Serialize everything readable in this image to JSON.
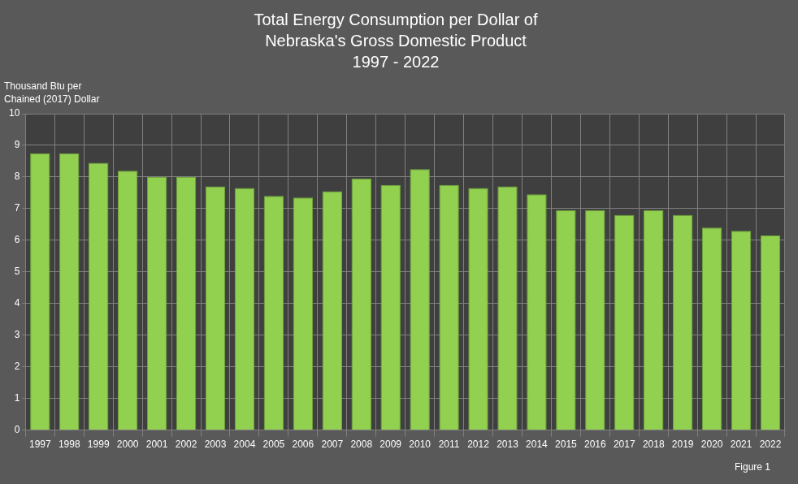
{
  "chart_data": {
    "type": "bar",
    "title": [
      "Total Energy Consumption per Dollar of",
      "Nebraska's Gross Domestic Product",
      "1997 - 2022"
    ],
    "y_label": [
      "Thousand Btu per",
      "Chained (2017) Dollar"
    ],
    "annotations": [
      "Figure 1"
    ],
    "categories": [
      "1997",
      "1998",
      "1999",
      "2000",
      "2001",
      "2002",
      "2003",
      "2004",
      "2005",
      "2006",
      "2007",
      "2008",
      "2009",
      "2010",
      "2011",
      "2012",
      "2013",
      "2014",
      "2015",
      "2016",
      "2017",
      "2018",
      "2019",
      "2020",
      "2021",
      "2022"
    ],
    "values": [
      8.75,
      8.75,
      8.45,
      8.2,
      8.0,
      8.0,
      7.7,
      7.65,
      7.4,
      7.35,
      7.55,
      7.95,
      7.75,
      8.25,
      7.75,
      7.65,
      7.7,
      7.45,
      6.95,
      6.95,
      6.8,
      6.95,
      6.8,
      6.4,
      6.3,
      6.15
    ],
    "color": "#92d050",
    "ylim": [
      0,
      10
    ],
    "yticks": [
      0,
      1,
      2,
      3,
      4,
      5,
      6,
      7,
      8,
      9,
      10
    ],
    "grid": true
  }
}
